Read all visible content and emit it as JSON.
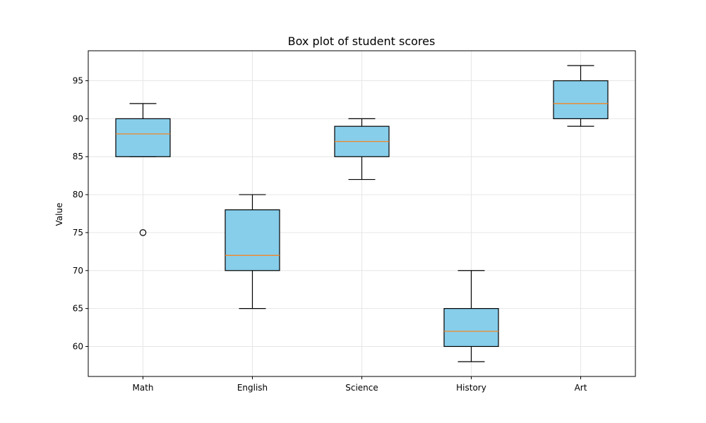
{
  "chart_data": {
    "type": "box",
    "title": "Box plot of student scores",
    "xlabel": "",
    "ylabel": "Value",
    "ylim": [
      56.05,
      98.95
    ],
    "yticks": [
      60,
      65,
      70,
      75,
      80,
      85,
      90,
      95
    ],
    "grid": true,
    "categories": [
      "Math",
      "English",
      "Science",
      "History",
      "Art"
    ],
    "boxes": [
      {
        "category": "Math",
        "whisker_low": 85,
        "q1": 85,
        "median": 88,
        "q3": 90,
        "whisker_high": 92,
        "outliers": [
          75
        ]
      },
      {
        "category": "English",
        "whisker_low": 65,
        "q1": 70,
        "median": 72,
        "q3": 78,
        "whisker_high": 80,
        "outliers": []
      },
      {
        "category": "Science",
        "whisker_low": 82,
        "q1": 85,
        "median": 87,
        "q3": 89,
        "whisker_high": 90,
        "outliers": []
      },
      {
        "category": "History",
        "whisker_low": 58,
        "q1": 60,
        "median": 62,
        "q3": 65,
        "whisker_high": 70,
        "outliers": []
      },
      {
        "category": "Art",
        "whisker_low": 89,
        "q1": 90,
        "median": 92,
        "q3": 95,
        "whisker_high": 97,
        "outliers": []
      }
    ],
    "colors": {
      "box_fill": "#87ceeb",
      "median": "#ff7f0e",
      "stroke": "#000000",
      "grid": "#e6e6e6"
    }
  }
}
